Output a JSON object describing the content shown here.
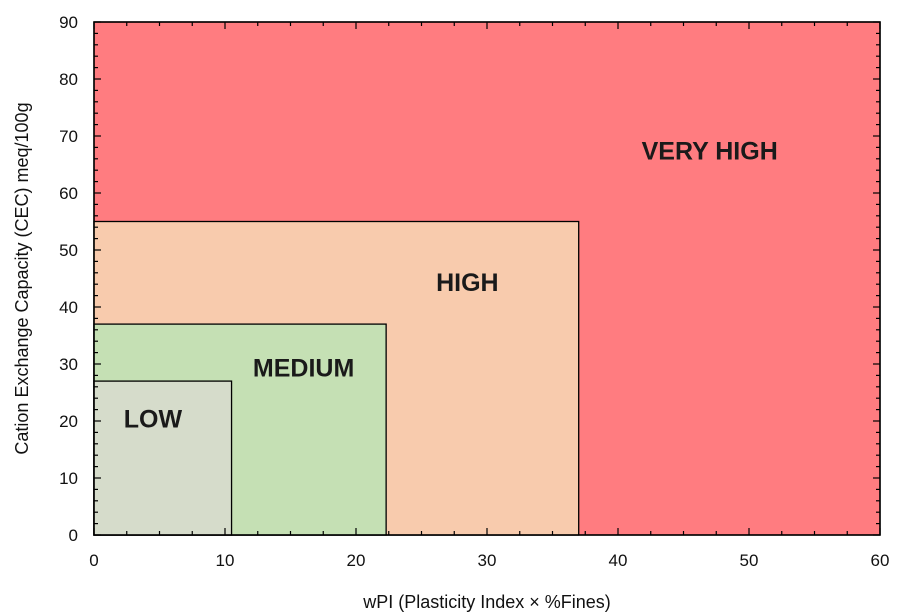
{
  "chart_data": {
    "type": "area",
    "xlabel": "wPI (Plasticity Index × %Fines)",
    "ylabel": "Cation Exchange Capacity (CEC) meq/100g",
    "xlim": [
      0,
      60
    ],
    "ylim": [
      0,
      90
    ],
    "x_ticks": [
      0,
      10,
      20,
      30,
      40,
      50,
      60
    ],
    "y_ticks": [
      0,
      10,
      20,
      30,
      40,
      50,
      60,
      70,
      80,
      90
    ],
    "x_tick_labels": [
      "0",
      "10",
      "20",
      "30",
      "40",
      "50",
      "60"
    ],
    "y_tick_labels": [
      "0",
      "10",
      "20",
      "30",
      "40",
      "50",
      "60",
      "70",
      "80",
      "90"
    ],
    "grid": false,
    "regions": [
      {
        "label": "VERY HIGH",
        "x_max": 60,
        "y_max": 90,
        "color": "#ff7c80",
        "label_x": 47,
        "label_y": 67
      },
      {
        "label": "HIGH",
        "x_max": 37,
        "y_max": 55,
        "color": "#f8cbad",
        "label_x": 28.5,
        "label_y": 44
      },
      {
        "label": "MEDIUM",
        "x_max": 22.3,
        "y_max": 37,
        "color": "#c5e0b4",
        "label_x": 16,
        "label_y": 29
      },
      {
        "label": "LOW",
        "x_max": 10.5,
        "y_max": 27,
        "color": "#d6dccb",
        "label_x": 4.5,
        "label_y": 20
      }
    ]
  }
}
